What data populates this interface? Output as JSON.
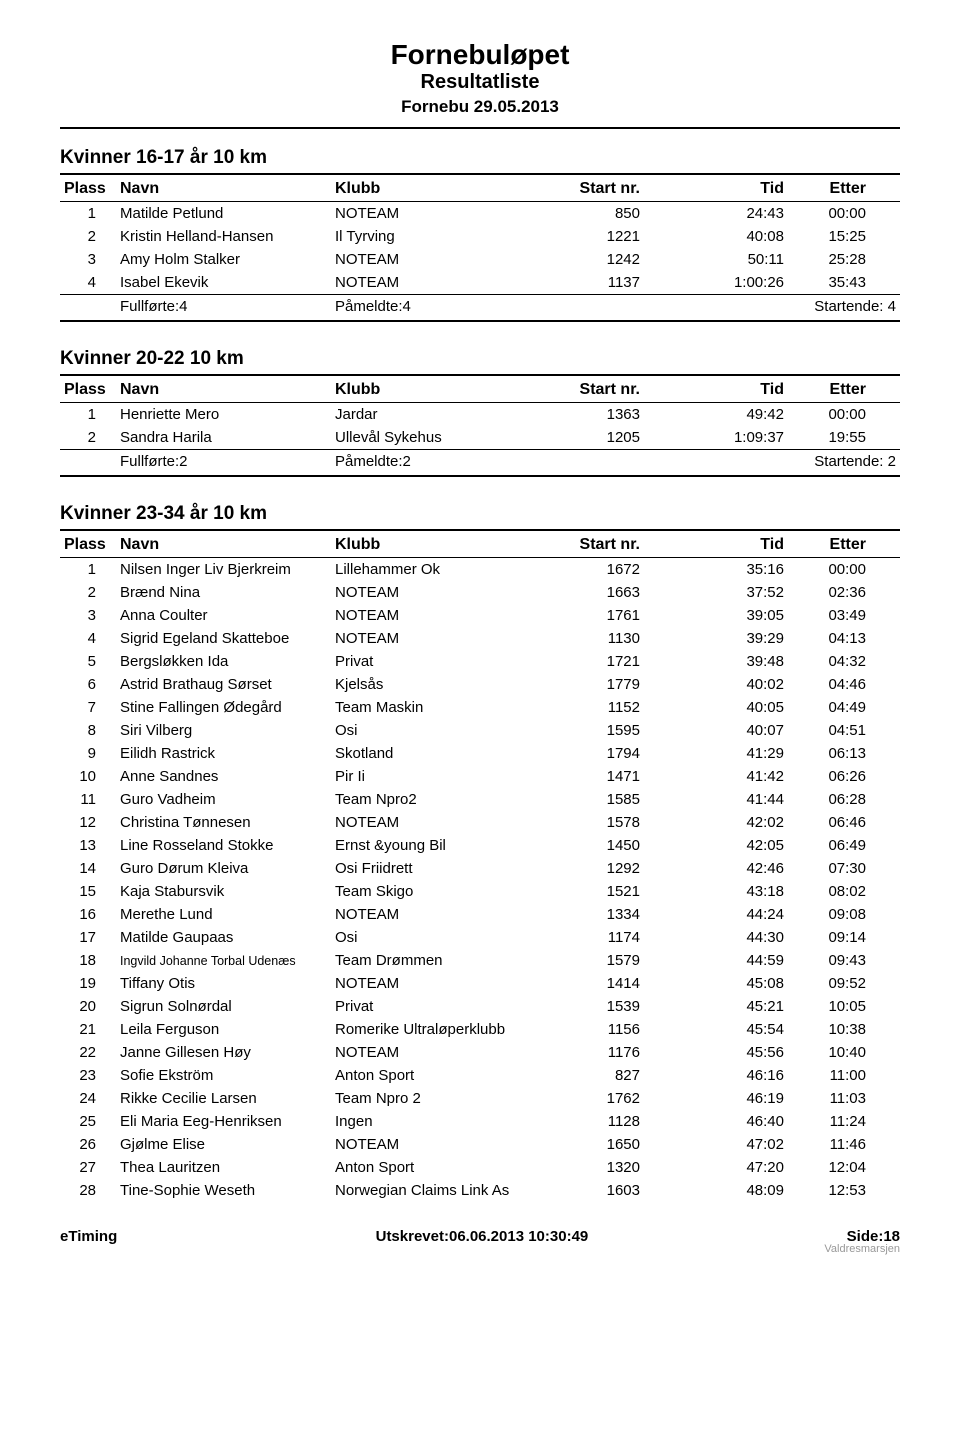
{
  "header": {
    "title": "Fornebuløpet",
    "subtitle": "Resultatliste",
    "date": "Fornebu 29.05.2013"
  },
  "col_headers": {
    "plass": "Plass",
    "navn": "Navn",
    "klubb": "Klubb",
    "start": "Start nr.",
    "tid": "Tid",
    "etter": "Etter"
  },
  "sections": [
    {
      "title": "Kvinner 16-17 år 10 km",
      "rows": [
        {
          "plass": "1",
          "navn": "Matilde Petlund",
          "klubb": "NOTEAM",
          "start": "850",
          "tid": "24:43",
          "etter": "00:00"
        },
        {
          "plass": "2",
          "navn": "Kristin Helland-Hansen",
          "klubb": "Il Tyrving",
          "start": "1221",
          "tid": "40:08",
          "etter": "15:25"
        },
        {
          "plass": "3",
          "navn": "Amy Holm Stalker",
          "klubb": "NOTEAM",
          "start": "1242",
          "tid": "50:11",
          "etter": "25:28"
        },
        {
          "plass": "4",
          "navn": "Isabel Ekevik",
          "klubb": "NOTEAM",
          "start": "1137",
          "tid": "1:00:26",
          "etter": "35:43"
        }
      ],
      "summary": {
        "fullforte": "Fullførte:4",
        "pameldte": "Påmeldte:4",
        "startende": "Startende: 4"
      }
    },
    {
      "title": "Kvinner 20-22 10 km",
      "rows": [
        {
          "plass": "1",
          "navn": "Henriette Mero",
          "klubb": "Jardar",
          "start": "1363",
          "tid": "49:42",
          "etter": "00:00"
        },
        {
          "plass": "2",
          "navn": "Sandra Harila",
          "klubb": "Ullevål Sykehus",
          "start": "1205",
          "tid": "1:09:37",
          "etter": "19:55"
        }
      ],
      "summary": {
        "fullforte": "Fullførte:2",
        "pameldte": "Påmeldte:2",
        "startende": "Startende: 2"
      }
    },
    {
      "title": "Kvinner 23-34 år 10 km",
      "rows": [
        {
          "plass": "1",
          "navn": "Nilsen Inger Liv Bjerkreim",
          "klubb": "Lillehammer Ok",
          "start": "1672",
          "tid": "35:16",
          "etter": "00:00"
        },
        {
          "plass": "2",
          "navn": "Brænd Nina",
          "klubb": "NOTEAM",
          "start": "1663",
          "tid": "37:52",
          "etter": "02:36"
        },
        {
          "plass": "3",
          "navn": "Anna Coulter",
          "klubb": "NOTEAM",
          "start": "1761",
          "tid": "39:05",
          "etter": "03:49"
        },
        {
          "plass": "4",
          "navn": "Sigrid Egeland Skatteboe",
          "klubb": "NOTEAM",
          "start": "1130",
          "tid": "39:29",
          "etter": "04:13"
        },
        {
          "plass": "5",
          "navn": "Bergsløkken Ida",
          "klubb": "Privat",
          "start": "1721",
          "tid": "39:48",
          "etter": "04:32"
        },
        {
          "plass": "6",
          "navn": "Astrid Brathaug Sørset",
          "klubb": "Kjelsås",
          "start": "1779",
          "tid": "40:02",
          "etter": "04:46"
        },
        {
          "plass": "7",
          "navn": "Stine Fallingen Ødegård",
          "klubb": "Team Maskin",
          "start": "1152",
          "tid": "40:05",
          "etter": "04:49"
        },
        {
          "plass": "8",
          "navn": "Siri Vilberg",
          "klubb": "Osi",
          "start": "1595",
          "tid": "40:07",
          "etter": "04:51"
        },
        {
          "plass": "9",
          "navn": "Eilidh Rastrick",
          "klubb": "Skotland",
          "start": "1794",
          "tid": "41:29",
          "etter": "06:13"
        },
        {
          "plass": "10",
          "navn": "Anne Sandnes",
          "klubb": "Pir Ii",
          "start": "1471",
          "tid": "41:42",
          "etter": "06:26"
        },
        {
          "plass": "11",
          "navn": "Guro Vadheim",
          "klubb": "Team Npro2",
          "start": "1585",
          "tid": "41:44",
          "etter": "06:28"
        },
        {
          "plass": "12",
          "navn": "Christina Tønnesen",
          "klubb": "NOTEAM",
          "start": "1578",
          "tid": "42:02",
          "etter": "06:46"
        },
        {
          "plass": "13",
          "navn": "Line Rosseland Stokke",
          "klubb": "Ernst &young Bil",
          "start": "1450",
          "tid": "42:05",
          "etter": "06:49"
        },
        {
          "plass": "14",
          "navn": "Guro Dørum Kleiva",
          "klubb": "Osi Friidrett",
          "start": "1292",
          "tid": "42:46",
          "etter": "07:30"
        },
        {
          "plass": "15",
          "navn": "Kaja Stabursvik",
          "klubb": "Team Skigo",
          "start": "1521",
          "tid": "43:18",
          "etter": "08:02"
        },
        {
          "plass": "16",
          "navn": "Merethe Lund",
          "klubb": "NOTEAM",
          "start": "1334",
          "tid": "44:24",
          "etter": "09:08"
        },
        {
          "plass": "17",
          "navn": "Matilde Gaupaas",
          "klubb": "Osi",
          "start": "1174",
          "tid": "44:30",
          "etter": "09:14"
        },
        {
          "plass": "18",
          "navn": "Ingvild Johanne Torbal Udenæs",
          "klubb": "Team Drømmen",
          "start": "1579",
          "tid": "44:59",
          "etter": "09:43",
          "small": true
        },
        {
          "plass": "19",
          "navn": "Tiffany Otis",
          "klubb": "NOTEAM",
          "start": "1414",
          "tid": "45:08",
          "etter": "09:52"
        },
        {
          "plass": "20",
          "navn": "Sigrun Solnørdal",
          "klubb": "Privat",
          "start": "1539",
          "tid": "45:21",
          "etter": "10:05"
        },
        {
          "plass": "21",
          "navn": "Leila Ferguson",
          "klubb": "Romerike Ultraløperklubb",
          "start": "1156",
          "tid": "45:54",
          "etter": "10:38"
        },
        {
          "plass": "22",
          "navn": "Janne Gillesen Høy",
          "klubb": "NOTEAM",
          "start": "1176",
          "tid": "45:56",
          "etter": "10:40"
        },
        {
          "plass": "23",
          "navn": "Sofie Ekström",
          "klubb": "Anton Sport",
          "start": "827",
          "tid": "46:16",
          "etter": "11:00"
        },
        {
          "plass": "24",
          "navn": "Rikke Cecilie Larsen",
          "klubb": "Team Npro 2",
          "start": "1762",
          "tid": "46:19",
          "etter": "11:03"
        },
        {
          "plass": "25",
          "navn": "Eli Maria Eeg-Henriksen",
          "klubb": "Ingen",
          "start": "1128",
          "tid": "46:40",
          "etter": "11:24"
        },
        {
          "plass": "26",
          "navn": "Gjølme Elise",
          "klubb": "NOTEAM",
          "start": "1650",
          "tid": "47:02",
          "etter": "11:46"
        },
        {
          "plass": "27",
          "navn": "Thea Lauritzen",
          "klubb": "Anton Sport",
          "start": "1320",
          "tid": "47:20",
          "etter": "12:04"
        },
        {
          "plass": "28",
          "navn": "Tine-Sophie Weseth",
          "klubb": "Norwegian Claims Link As",
          "start": "1603",
          "tid": "48:09",
          "etter": "12:53"
        }
      ]
    }
  ],
  "footer": {
    "left": "eTiming",
    "center": "Utskrevet:06.06.2013 10:30:49",
    "right": "Side:18",
    "cut": "Valdresmarsjen"
  }
}
